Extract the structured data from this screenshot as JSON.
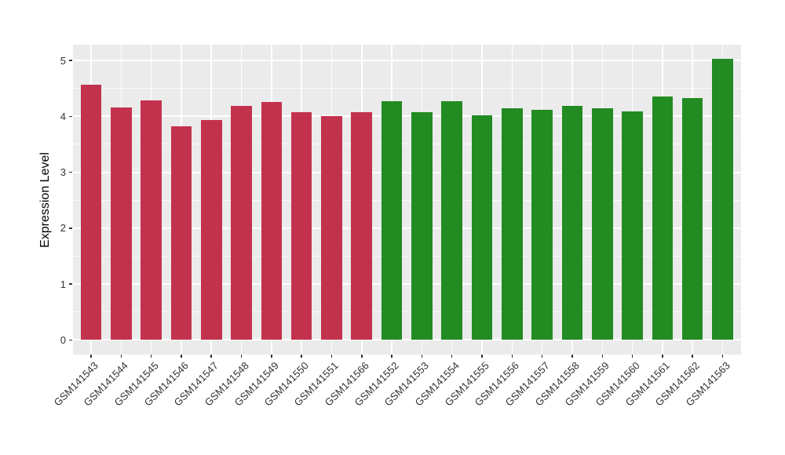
{
  "chart_data": {
    "type": "bar",
    "title": "",
    "xlabel": "",
    "ylabel": "Expression Level",
    "categories": [
      "GSM141543",
      "GSM141544",
      "GSM141545",
      "GSM141546",
      "GSM141547",
      "GSM141548",
      "GSM141549",
      "GSM141550",
      "GSM141551",
      "GSM141566",
      "GSM141552",
      "GSM141553",
      "GSM141554",
      "GSM141555",
      "GSM141556",
      "GSM141557",
      "GSM141558",
      "GSM141559",
      "GSM141560",
      "GSM141561",
      "GSM141562",
      "GSM141563"
    ],
    "values": [
      4.56,
      4.16,
      4.28,
      3.82,
      3.94,
      4.18,
      4.26,
      4.08,
      4.0,
      4.07,
      4.27,
      4.07,
      4.27,
      4.02,
      4.15,
      4.12,
      4.19,
      4.14,
      4.09,
      4.35,
      4.32,
      5.03
    ],
    "bar_groups": [
      "red",
      "red",
      "red",
      "red",
      "red",
      "red",
      "red",
      "red",
      "red",
      "red",
      "green",
      "green",
      "green",
      "green",
      "green",
      "green",
      "green",
      "green",
      "green",
      "green",
      "green",
      "green"
    ],
    "group_colors": {
      "red": "#C3324D",
      "green": "#228B22"
    },
    "yticks": [
      0,
      1,
      2,
      3,
      4,
      5
    ],
    "ylim": [
      0,
      5.28
    ],
    "minor_grid_step": 0.5,
    "grid": "on",
    "legend": "none",
    "style": {
      "panel_background": "#EBEBEB",
      "major_gridline_color": "#FFFFFF",
      "minor_gridline_color": "#FFFFFF",
      "axis_text_color": "#333333",
      "axis_title_color": "#000000",
      "x_tick_rotation_deg": 45
    }
  }
}
